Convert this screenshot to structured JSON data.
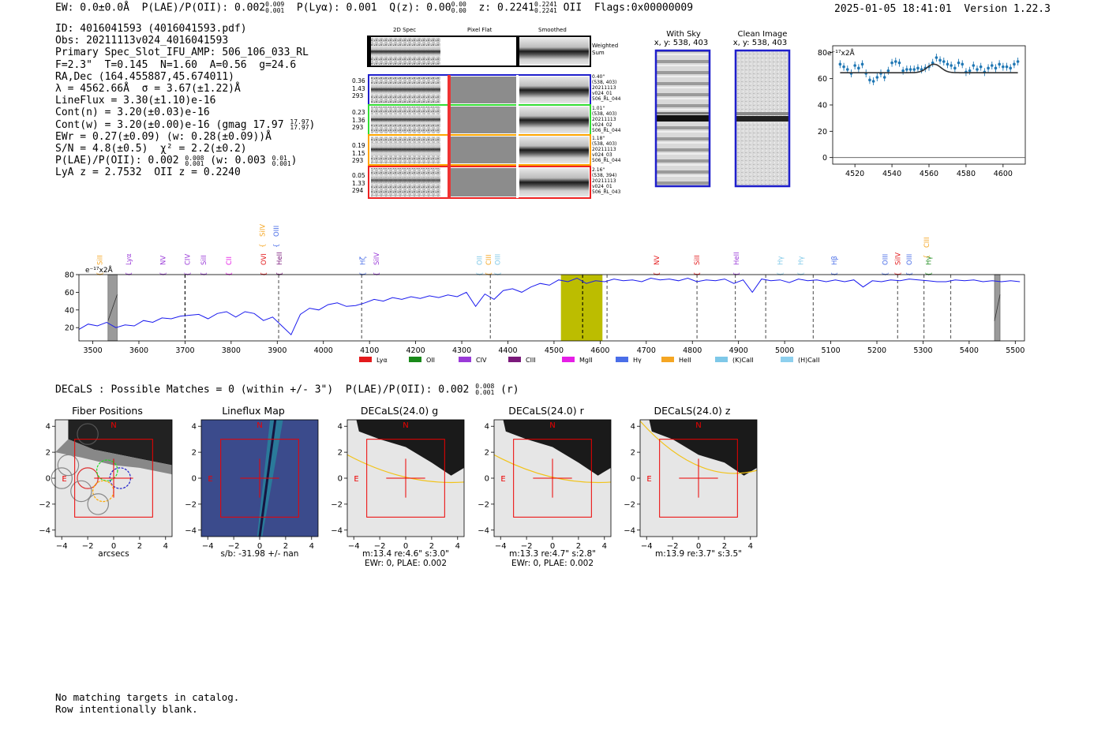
{
  "header": {
    "ew": "EW: 0.0±0.0Å",
    "plae_label": "P(LAE)/P(OII): 0.002",
    "plae_sup": "0.009",
    "plae_sub": "0.001",
    "plya": "P(Lyα): 0.001",
    "qz_label": "Q(z): 0.00",
    "qz_sup": "0.00",
    "qz_sub": "0.00",
    "z_label": "z: 0.2241",
    "z_sup": "0.2241",
    "z_sub": "0.2241",
    "z_line": "OII",
    "flags": "Flags:0x00000009",
    "timestamp": "2025-01-05 18:41:01",
    "version": "Version 1.22.3"
  },
  "info": {
    "id": "ID: 4016041593 (4016041593.pdf)",
    "obs": "Obs: 20211113v024_4016041593",
    "slot": "Primary Spec_Slot_IFU_AMP: 506_106_033_RL",
    "fit": "F=2.3\"  T=0.145  N=1.60  A=0.56  g=24.6",
    "radec": "RA,Dec (164.455887,45.674011)",
    "lambda": "λ = 4562.66Å  σ = 3.67(±1.22)Å",
    "lineflux": "LineFlux = 3.30(±1.10)e-16",
    "cont_n": "Cont(n) = 3.20(±0.03)e-16",
    "cont_w_pre": "Cont(w) = 3.20(±0.00)e-16 (gmag 17.97",
    "cont_w_sup": "17.97",
    "cont_w_sub": "17.97",
    "cont_w_post": ")",
    "ewr": "EWr = 0.27(±0.09) (w: 0.28(±0.09))Å",
    "sn": "S/N = 4.8(±0.5)  χ² = 2.2(±0.2)",
    "plae_pre": "P(LAE)/P(OII): 0.002",
    "plae_sup": "0.008",
    "plae_sub": "0.001",
    "plae_mid": "(w: 0.003",
    "plae_w_sup": "0.01",
    "plae_w_sub": "0.001",
    "plae_post": ")",
    "lya_oii": "LyA z = 2.7532  OII z = 0.2240"
  },
  "spectra_panel": {
    "col_2d": "2D Spec",
    "col_flat": "Pixel Flat",
    "col_smooth": "Smoothed",
    "weighted_sum": "Weighted\nSum",
    "fibers": [
      {
        "left": [
          "0.36",
          "1.43",
          "293"
        ],
        "right": "0.40\"\n(538, 403)\n20211113\nv024_01\n506_RL_044",
        "color": "#1f1fcc"
      },
      {
        "left": [
          "0.23",
          "1.36",
          "293"
        ],
        "right": "1.01\"\n(538, 403)\n20211113\nv024_02\n506_RL_044",
        "color": "#33dd33"
      },
      {
        "left": [
          "0.19",
          "1.15",
          "293"
        ],
        "right": "1.18\"\n(538, 403)\n20211113\nv024_03\n506_RL_044",
        "color": "#ffa500"
      },
      {
        "left": [
          "0.05",
          "1.33",
          "294"
        ],
        "right": "2.16\"\n(538, 394)\n20211113\nv024_01\n506_RL_043",
        "color": "#ee2222"
      }
    ]
  },
  "sky_panels": {
    "with_sky_title": "With Sky",
    "with_sky_xy": "x, y: 538, 403",
    "clean_title": "Clean Image",
    "clean_xy": "x, y: 538, 403"
  },
  "zoom_chart": {
    "type": "scatter",
    "ylabel_text": "e⁻¹⁷x2Å",
    "x_ticks": [
      4520,
      4540,
      4560,
      4580,
      4600
    ],
    "y_ticks": [
      0,
      20,
      40,
      60,
      80
    ],
    "xlim": [
      4508,
      4612
    ],
    "ylim": [
      -5,
      85
    ],
    "points_x": [
      4512,
      4514,
      4516,
      4518,
      4520,
      4522,
      4524,
      4526,
      4528,
      4530,
      4532,
      4534,
      4536,
      4538,
      4540,
      4542,
      4544,
      4546,
      4548,
      4550,
      4552,
      4554,
      4556,
      4558,
      4560,
      4562,
      4564,
      4566,
      4568,
      4570,
      4572,
      4574,
      4576,
      4578,
      4580,
      4582,
      4584,
      4586,
      4588,
      4590,
      4592,
      4594,
      4596,
      4598,
      4600,
      4602,
      4604,
      4606,
      4608
    ],
    "points_y": [
      71,
      69,
      67,
      64,
      70,
      68,
      71,
      64,
      59,
      58,
      61,
      64,
      61,
      66,
      72,
      73,
      72,
      66,
      67,
      67,
      67,
      68,
      67,
      68,
      69,
      72,
      76,
      74,
      73,
      71,
      70,
      68,
      72,
      71,
      65,
      66,
      70,
      67,
      69,
      65,
      68,
      70,
      68,
      71,
      69,
      69,
      68,
      71,
      73
    ],
    "fit_baseline": 64.5,
    "fit_peak_x": 4562.7,
    "fit_peak_amp": 6.5,
    "fit_sigma": 3.7
  },
  "chart_data": {
    "type": "line",
    "title": "",
    "ylabel_text": "e⁻¹⁷x2Å",
    "xlim": [
      3470,
      5520
    ],
    "ylim": [
      5,
      80
    ],
    "x_ticks": [
      3500,
      3600,
      3700,
      3800,
      3900,
      4000,
      4100,
      4200,
      4300,
      4400,
      4500,
      4600,
      4700,
      4800,
      4900,
      5000,
      5100,
      5200,
      5300,
      5400,
      5500
    ],
    "y_ticks": [
      20,
      40,
      60,
      80
    ],
    "spectrum_x": [
      3470,
      3490,
      3510,
      3530,
      3550,
      3570,
      3590,
      3610,
      3630,
      3650,
      3670,
      3690,
      3710,
      3730,
      3750,
      3770,
      3790,
      3810,
      3830,
      3850,
      3870,
      3890,
      3910,
      3930,
      3950,
      3970,
      3990,
      4010,
      4030,
      4050,
      4070,
      4090,
      4110,
      4130,
      4150,
      4170,
      4190,
      4210,
      4230,
      4250,
      4270,
      4290,
      4310,
      4330,
      4350,
      4370,
      4390,
      4410,
      4430,
      4450,
      4470,
      4490,
      4510,
      4530,
      4550,
      4570,
      4590,
      4610,
      4630,
      4650,
      4670,
      4690,
      4710,
      4730,
      4750,
      4770,
      4790,
      4810,
      4830,
      4850,
      4870,
      4890,
      4910,
      4930,
      4950,
      4970,
      4990,
      5010,
      5030,
      5050,
      5070,
      5090,
      5110,
      5130,
      5150,
      5170,
      5190,
      5210,
      5230,
      5250,
      5270,
      5290,
      5310,
      5330,
      5350,
      5370,
      5390,
      5410,
      5430,
      5450,
      5470,
      5490,
      5510
    ],
    "spectrum_y": [
      18,
      24,
      22,
      26,
      20,
      23,
      22,
      28,
      26,
      31,
      30,
      33,
      34,
      35,
      30,
      36,
      38,
      32,
      38,
      36,
      28,
      32,
      22,
      12,
      35,
      42,
      40,
      46,
      48,
      44,
      45,
      48,
      52,
      50,
      54,
      52,
      55,
      53,
      56,
      54,
      57,
      55,
      60,
      44,
      58,
      52,
      62,
      64,
      60,
      66,
      70,
      68,
      74,
      72,
      76,
      70,
      73,
      72,
      75,
      73,
      74,
      72,
      76,
      74,
      75,
      73,
      76,
      72,
      74,
      73,
      75,
      70,
      74,
      60,
      75,
      73,
      74,
      71,
      75,
      73,
      74,
      72,
      74,
      72,
      74,
      66,
      73,
      72,
      74,
      73,
      75,
      74,
      73,
      72,
      72,
      74,
      73,
      74,
      72,
      73,
      72,
      73,
      72
    ],
    "highlight_range": [
      4515,
      4605
    ],
    "masked_ranges": [
      [
        3533,
        3553
      ],
      [
        5455,
        5467
      ]
    ],
    "dashed_lines_black": [
      3700,
      4562
    ],
    "dashed_lines_gray": [
      3903,
      4083,
      4362,
      4615,
      4810,
      4893,
      4959,
      5062,
      5245,
      5302,
      5360
    ],
    "legend": [
      {
        "label": "Lyα",
        "color": "#e31a1c"
      },
      {
        "label": "OII",
        "color": "#1a8a1a"
      },
      {
        "label": "CIV",
        "color": "#9a3ad8"
      },
      {
        "label": "CIII",
        "color": "#7b1a7b"
      },
      {
        "label": "MgII",
        "color": "#e61ee6"
      },
      {
        "label": "Hγ",
        "color": "#4a6ee8"
      },
      {
        "label": "HeII",
        "color": "#f5a623"
      },
      {
        "label": "(K)CaII",
        "color": "#7ec8e8"
      },
      {
        "label": "(H)CaII",
        "color": "#8ed0ee"
      }
    ],
    "line_labels": [
      {
        "text": "SiII",
        "x": 3515,
        "row": 2,
        "color": "#f5a623"
      },
      {
        "text": "Lyα",
        "x": 3578,
        "row": 2,
        "color": "#9a3ad8"
      },
      {
        "text": "NV",
        "x": 3652,
        "row": 2,
        "color": "#9a3ad8"
      },
      {
        "text": "CIV",
        "x": 3705,
        "row": 2,
        "color": "#9a3ad8"
      },
      {
        "text": "SiII",
        "x": 3740,
        "row": 2,
        "color": "#9a3ad8"
      },
      {
        "text": "CII",
        "x": 3795,
        "row": 2,
        "color": "#e61ee6"
      },
      {
        "text": "SiIV",
        "x": 3868,
        "row": 0,
        "color": "#f5a623"
      },
      {
        "text": "OIII",
        "x": 3898,
        "row": 0,
        "color": "#4a6ee8"
      },
      {
        "text": "OVI",
        "x": 3870,
        "row": 2,
        "color": "#e31a1c"
      },
      {
        "text": "HeII",
        "x": 3905,
        "row": 2,
        "color": "#7b1a7b"
      },
      {
        "text": "Hζ",
        "x": 4085,
        "row": 2,
        "color": "#4a6ee8"
      },
      {
        "text": "SiIV",
        "x": 4115,
        "row": 2,
        "color": "#9a3ad8"
      },
      {
        "text": "OII",
        "x": 4338,
        "row": 2,
        "color": "#7ec8e8"
      },
      {
        "text": "CIII",
        "x": 4358,
        "row": 2,
        "color": "#f5a623"
      },
      {
        "text": "OIII",
        "x": 4378,
        "row": 2,
        "color": "#7ec8e8"
      },
      {
        "text": "NV",
        "x": 4723,
        "row": 2,
        "color": "#e31a1c"
      },
      {
        "text": "SiII",
        "x": 4810,
        "row": 2,
        "color": "#e31a1c"
      },
      {
        "text": "HeII",
        "x": 4895,
        "row": 2,
        "color": "#9a3ad8"
      },
      {
        "text": "Hγ",
        "x": 4990,
        "row": 2,
        "color": "#7ec8e8"
      },
      {
        "text": "Hγ",
        "x": 5035,
        "row": 2,
        "color": "#7ec8e8"
      },
      {
        "text": "Hβ",
        "x": 5108,
        "row": 2,
        "color": "#4a6ee8"
      },
      {
        "text": "OIII",
        "x": 5218,
        "row": 2,
        "color": "#4a6ee8"
      },
      {
        "text": "SiIV",
        "x": 5245,
        "row": 2,
        "color": "#e31a1c"
      },
      {
        "text": "OIII",
        "x": 5270,
        "row": 2,
        "color": "#4a6ee8"
      },
      {
        "text": "CIII",
        "x": 5308,
        "row": 1,
        "color": "#f5a623"
      },
      {
        "text": "Hγ",
        "x": 5312,
        "row": 2,
        "color": "#1a8a1a"
      }
    ]
  },
  "decals": {
    "summary_pre": "DECaLS : Possible Matches = 0 (within +/- 3\")  P(LAE)/P(OII): 0.002",
    "summary_sup": "0.008",
    "summary_sub": "0.001",
    "summary_post": "(r)",
    "axis_ticks_x": [
      -4,
      -2,
      0,
      2,
      4
    ],
    "axis_ticks_y": [
      4,
      2,
      0,
      -2,
      -4
    ],
    "north": "N",
    "east": "E",
    "panels": [
      {
        "title": "Fiber Positions",
        "foot1": "arcsecs",
        "foot2": ""
      },
      {
        "title": "Lineflux Map",
        "foot1": "s/b: -31.98 +/- nan",
        "foot2": ""
      },
      {
        "title": "DECaLS(24.0) g",
        "foot1": "m:13.4  re:4.6\"  s:3.0\"",
        "foot2": "EWr: 0, PLAE: 0.002"
      },
      {
        "title": "DECaLS(24.0) r",
        "foot1": "m:13.3  re:4.7\"  s:2.8\"",
        "foot2": "EWr: 0, PLAE: 0.002"
      },
      {
        "title": "DECaLS(24.0) z",
        "foot1": "m:13.9  re:3.7\"  s:3.5\"",
        "foot2": ""
      }
    ]
  },
  "catalog_note": {
    "line1": "No matching targets in catalog.",
    "line2": "Row intentionally blank."
  }
}
